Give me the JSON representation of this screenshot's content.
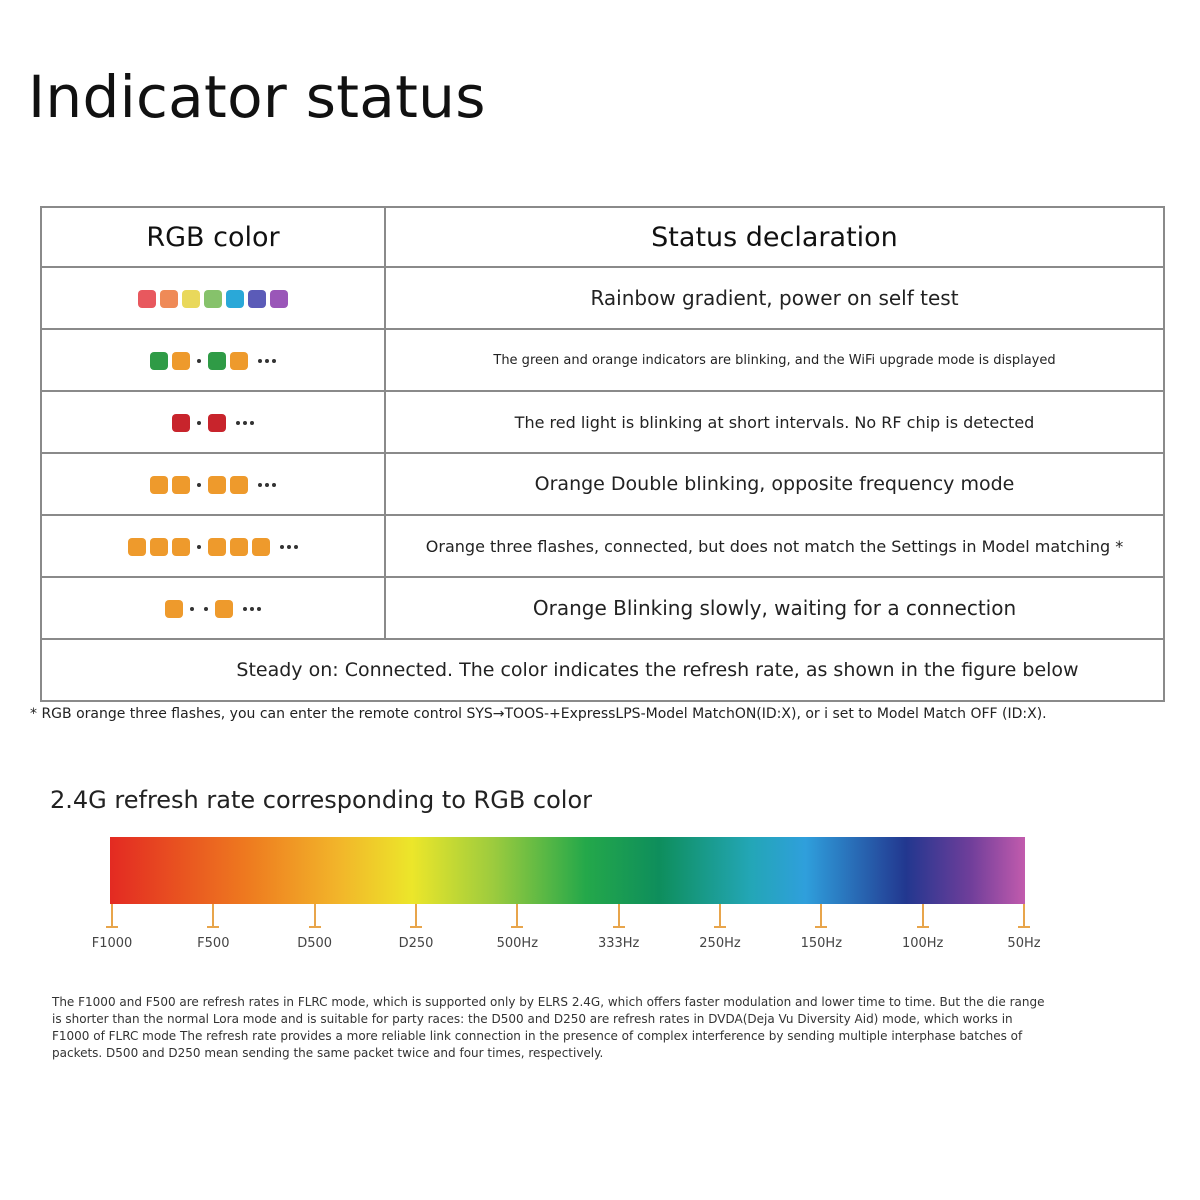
{
  "page": {
    "title": "Indicator status"
  },
  "table": {
    "headers": {
      "rgb_color": "RGB color",
      "status": "Status declaration"
    },
    "rows": [
      {
        "pattern": [
          {
            "type": "sq",
            "color": "#e8585e"
          },
          {
            "type": "sq",
            "color": "#ef8a57"
          },
          {
            "type": "sq",
            "color": "#e9d85b"
          },
          {
            "type": "sq",
            "color": "#86c26b"
          },
          {
            "type": "sq",
            "color": "#2aa8d8"
          },
          {
            "type": "sq",
            "color": "#5b5bb8"
          },
          {
            "type": "sq",
            "color": "#9a56b8"
          }
        ],
        "description": "Rainbow gradient, power on self test"
      },
      {
        "pattern": [
          {
            "type": "sq",
            "color": "#2f9b46"
          },
          {
            "type": "sq",
            "color": "#ee9a2c"
          },
          {
            "type": "dot"
          },
          {
            "type": "sq",
            "color": "#2f9b46"
          },
          {
            "type": "sq",
            "color": "#ee9a2c"
          },
          {
            "type": "ellipsis"
          }
        ],
        "description": "The green and orange indicators are blinking, and the WiFi upgrade mode is displayed"
      },
      {
        "pattern": [
          {
            "type": "sq",
            "color": "#c8242c"
          },
          {
            "type": "dot"
          },
          {
            "type": "sq",
            "color": "#c8242c"
          },
          {
            "type": "ellipsis"
          }
        ],
        "description": "The red light is blinking at short intervals. No RF chip is detected"
      },
      {
        "pattern": [
          {
            "type": "sq",
            "color": "#ee9a2c"
          },
          {
            "type": "sq",
            "color": "#ee9a2c"
          },
          {
            "type": "dot"
          },
          {
            "type": "sq",
            "color": "#ee9a2c"
          },
          {
            "type": "sq",
            "color": "#ee9a2c"
          },
          {
            "type": "ellipsis"
          }
        ],
        "description": "Orange Double blinking, opposite frequency mode"
      },
      {
        "pattern": [
          {
            "type": "sq",
            "color": "#ee9a2c"
          },
          {
            "type": "sq",
            "color": "#ee9a2c"
          },
          {
            "type": "sq",
            "color": "#ee9a2c"
          },
          {
            "type": "dot"
          },
          {
            "type": "sq",
            "color": "#ee9a2c"
          },
          {
            "type": "sq",
            "color": "#ee9a2c"
          },
          {
            "type": "sq",
            "color": "#ee9a2c"
          },
          {
            "type": "ellipsis"
          }
        ],
        "description": "Orange three flashes, connected, but does not match the Settings in Model matching *"
      },
      {
        "pattern": [
          {
            "type": "sq",
            "color": "#ee9a2c"
          },
          {
            "type": "dot"
          },
          {
            "type": "dot"
          },
          {
            "type": "sq",
            "color": "#ee9a2c"
          },
          {
            "type": "ellipsis"
          }
        ],
        "description": "Orange Blinking slowly, waiting for a connection"
      }
    ],
    "footer": "Steady on: Connected. The color indicates the refresh rate, as shown in the figure below"
  },
  "footnote": "* RGB orange three flashes, you can enter the remote control SYS→TOOS-+ExpressLPS-Model MatchON(ID:X), or i set to Model Match OFF (ID:X).",
  "refresh": {
    "title": "2.4G refresh rate corresponding to RGB color",
    "ticks": [
      "F1000",
      "F500",
      "D500",
      "D250",
      "500Hz",
      "333Hz",
      "250Hz",
      "150Hz",
      "100Hz",
      "50Hz"
    ],
    "tick_color": "#e8a54b",
    "paragraph": "The F1000 and F500 are refresh rates in FLRC mode, which is supported only by ELRS 2.4G, which offers faster modulation and lower time to time. But the die range is shorter than the normal Lora mode and is suitable for party races: the D500 and D250 are refresh rates in DVDA(Deja Vu Diversity Aid) mode, which works in F1000 of FLRC mode The refresh rate provides a more reliable link connection in the presence of complex interference by sending multiple interphase batches of packets. D500 and D250 mean sending the same packet twice and four times, respectively."
  }
}
